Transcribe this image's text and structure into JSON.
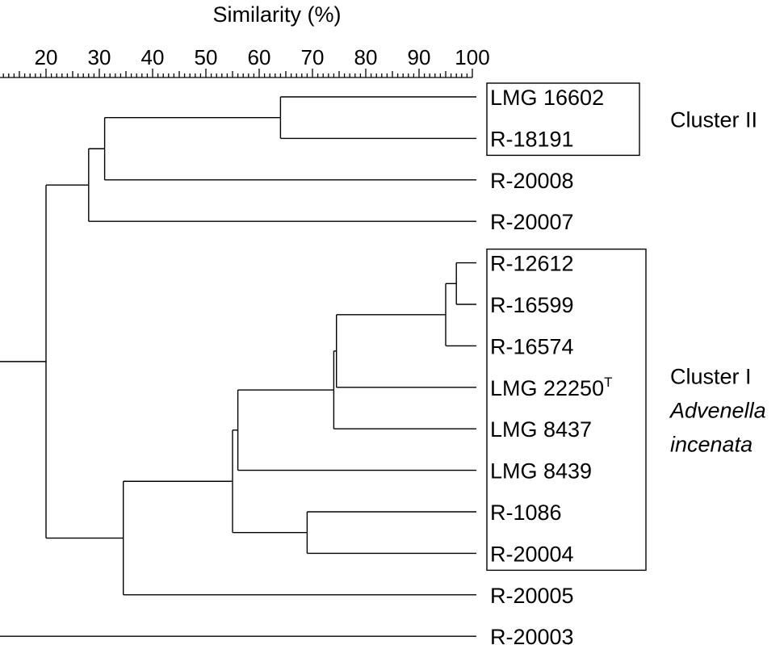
{
  "figure": {
    "axis": {
      "title": "Similarity (%)",
      "min": 10,
      "max": 100,
      "tick_labels": [
        "20",
        "30",
        "40",
        "50",
        "60",
        "70",
        "80",
        "90",
        "100"
      ]
    },
    "leaves": [
      {
        "label": "LMG 16602",
        "superscript": ""
      },
      {
        "label": "R-18191",
        "superscript": ""
      },
      {
        "label": "R-20008",
        "superscript": ""
      },
      {
        "label": "R-20007",
        "superscript": ""
      },
      {
        "label": "R-12612",
        "superscript": ""
      },
      {
        "label": "R-16599",
        "superscript": ""
      },
      {
        "label": "R-16574",
        "superscript": ""
      },
      {
        "label": "LMG 22250",
        "superscript": "T"
      },
      {
        "label": "LMG 8437",
        "superscript": ""
      },
      {
        "label": "LMG 8439",
        "superscript": ""
      },
      {
        "label": "R-1086",
        "superscript": ""
      },
      {
        "label": "R-20004",
        "superscript": ""
      },
      {
        "label": "R-20005",
        "superscript": ""
      },
      {
        "label": "R-20003",
        "superscript": ""
      }
    ],
    "nodes": [
      {
        "id": "n1",
        "similarity": 64,
        "children": [
          "L0",
          "L1"
        ]
      },
      {
        "id": "n2",
        "similarity": 31,
        "children": [
          "n1",
          "L2"
        ]
      },
      {
        "id": "n3",
        "similarity": 28,
        "children": [
          "n2",
          "L3"
        ]
      },
      {
        "id": "n4",
        "similarity": 97,
        "children": [
          "L4",
          "L5"
        ]
      },
      {
        "id": "n5",
        "similarity": 95,
        "children": [
          "n4",
          "L6"
        ]
      },
      {
        "id": "n6",
        "similarity": 74.5,
        "children": [
          "n5",
          "L7"
        ]
      },
      {
        "id": "n7",
        "similarity": 74,
        "children": [
          "n6",
          "L8"
        ]
      },
      {
        "id": "n8",
        "similarity": 56,
        "children": [
          "n7",
          "L9"
        ]
      },
      {
        "id": "n9",
        "similarity": 69,
        "children": [
          "L10",
          "L11"
        ]
      },
      {
        "id": "n10",
        "similarity": 55,
        "children": [
          "n8",
          "n9"
        ]
      },
      {
        "id": "n11",
        "similarity": 34.5,
        "children": [
          "n10",
          "L12"
        ]
      },
      {
        "id": "n12",
        "similarity": 20,
        "children": [
          "n3",
          "n11"
        ]
      },
      {
        "id": "n13",
        "similarity": 10.5,
        "children": [
          "n12",
          "L13"
        ]
      }
    ],
    "clusters": [
      {
        "name": "Cluster II",
        "species": "",
        "first_leaf": 0,
        "last_leaf": 1
      },
      {
        "name": "Cluster I",
        "species": "Advenella incenata",
        "first_leaf": 4,
        "last_leaf": 11
      }
    ]
  }
}
